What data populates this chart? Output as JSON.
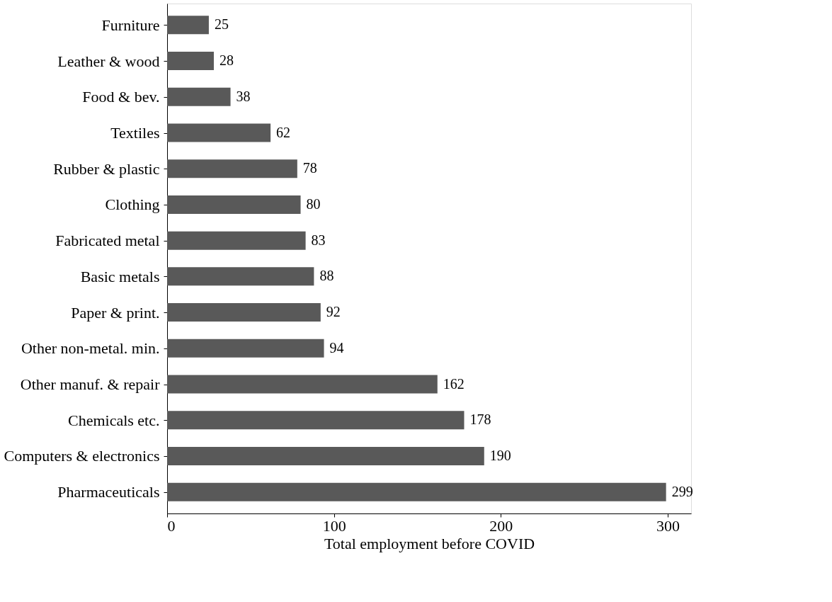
{
  "chart_data": {
    "type": "bar",
    "orientation": "horizontal",
    "xlabel": "Total employment before COVID",
    "categories": [
      "Furniture",
      "Leather & wood",
      "Food & bev.",
      "Textiles",
      "Rubber & plastic",
      "Clothing",
      "Fabricated metal",
      "Basic metals",
      "Paper & print.",
      "Other non-metal. min.",
      "Other manuf. & repair",
      "Chemicals etc.",
      "Computers & electronics",
      "Pharmaceuticals"
    ],
    "values": [
      25,
      28,
      38,
      62,
      78,
      80,
      83,
      88,
      92,
      94,
      162,
      178,
      190,
      299
    ],
    "color": "#595959",
    "xlim": [
      0,
      314
    ],
    "xticks": [
      0,
      100,
      200,
      300
    ],
    "grid": false,
    "data_labels": true
  }
}
